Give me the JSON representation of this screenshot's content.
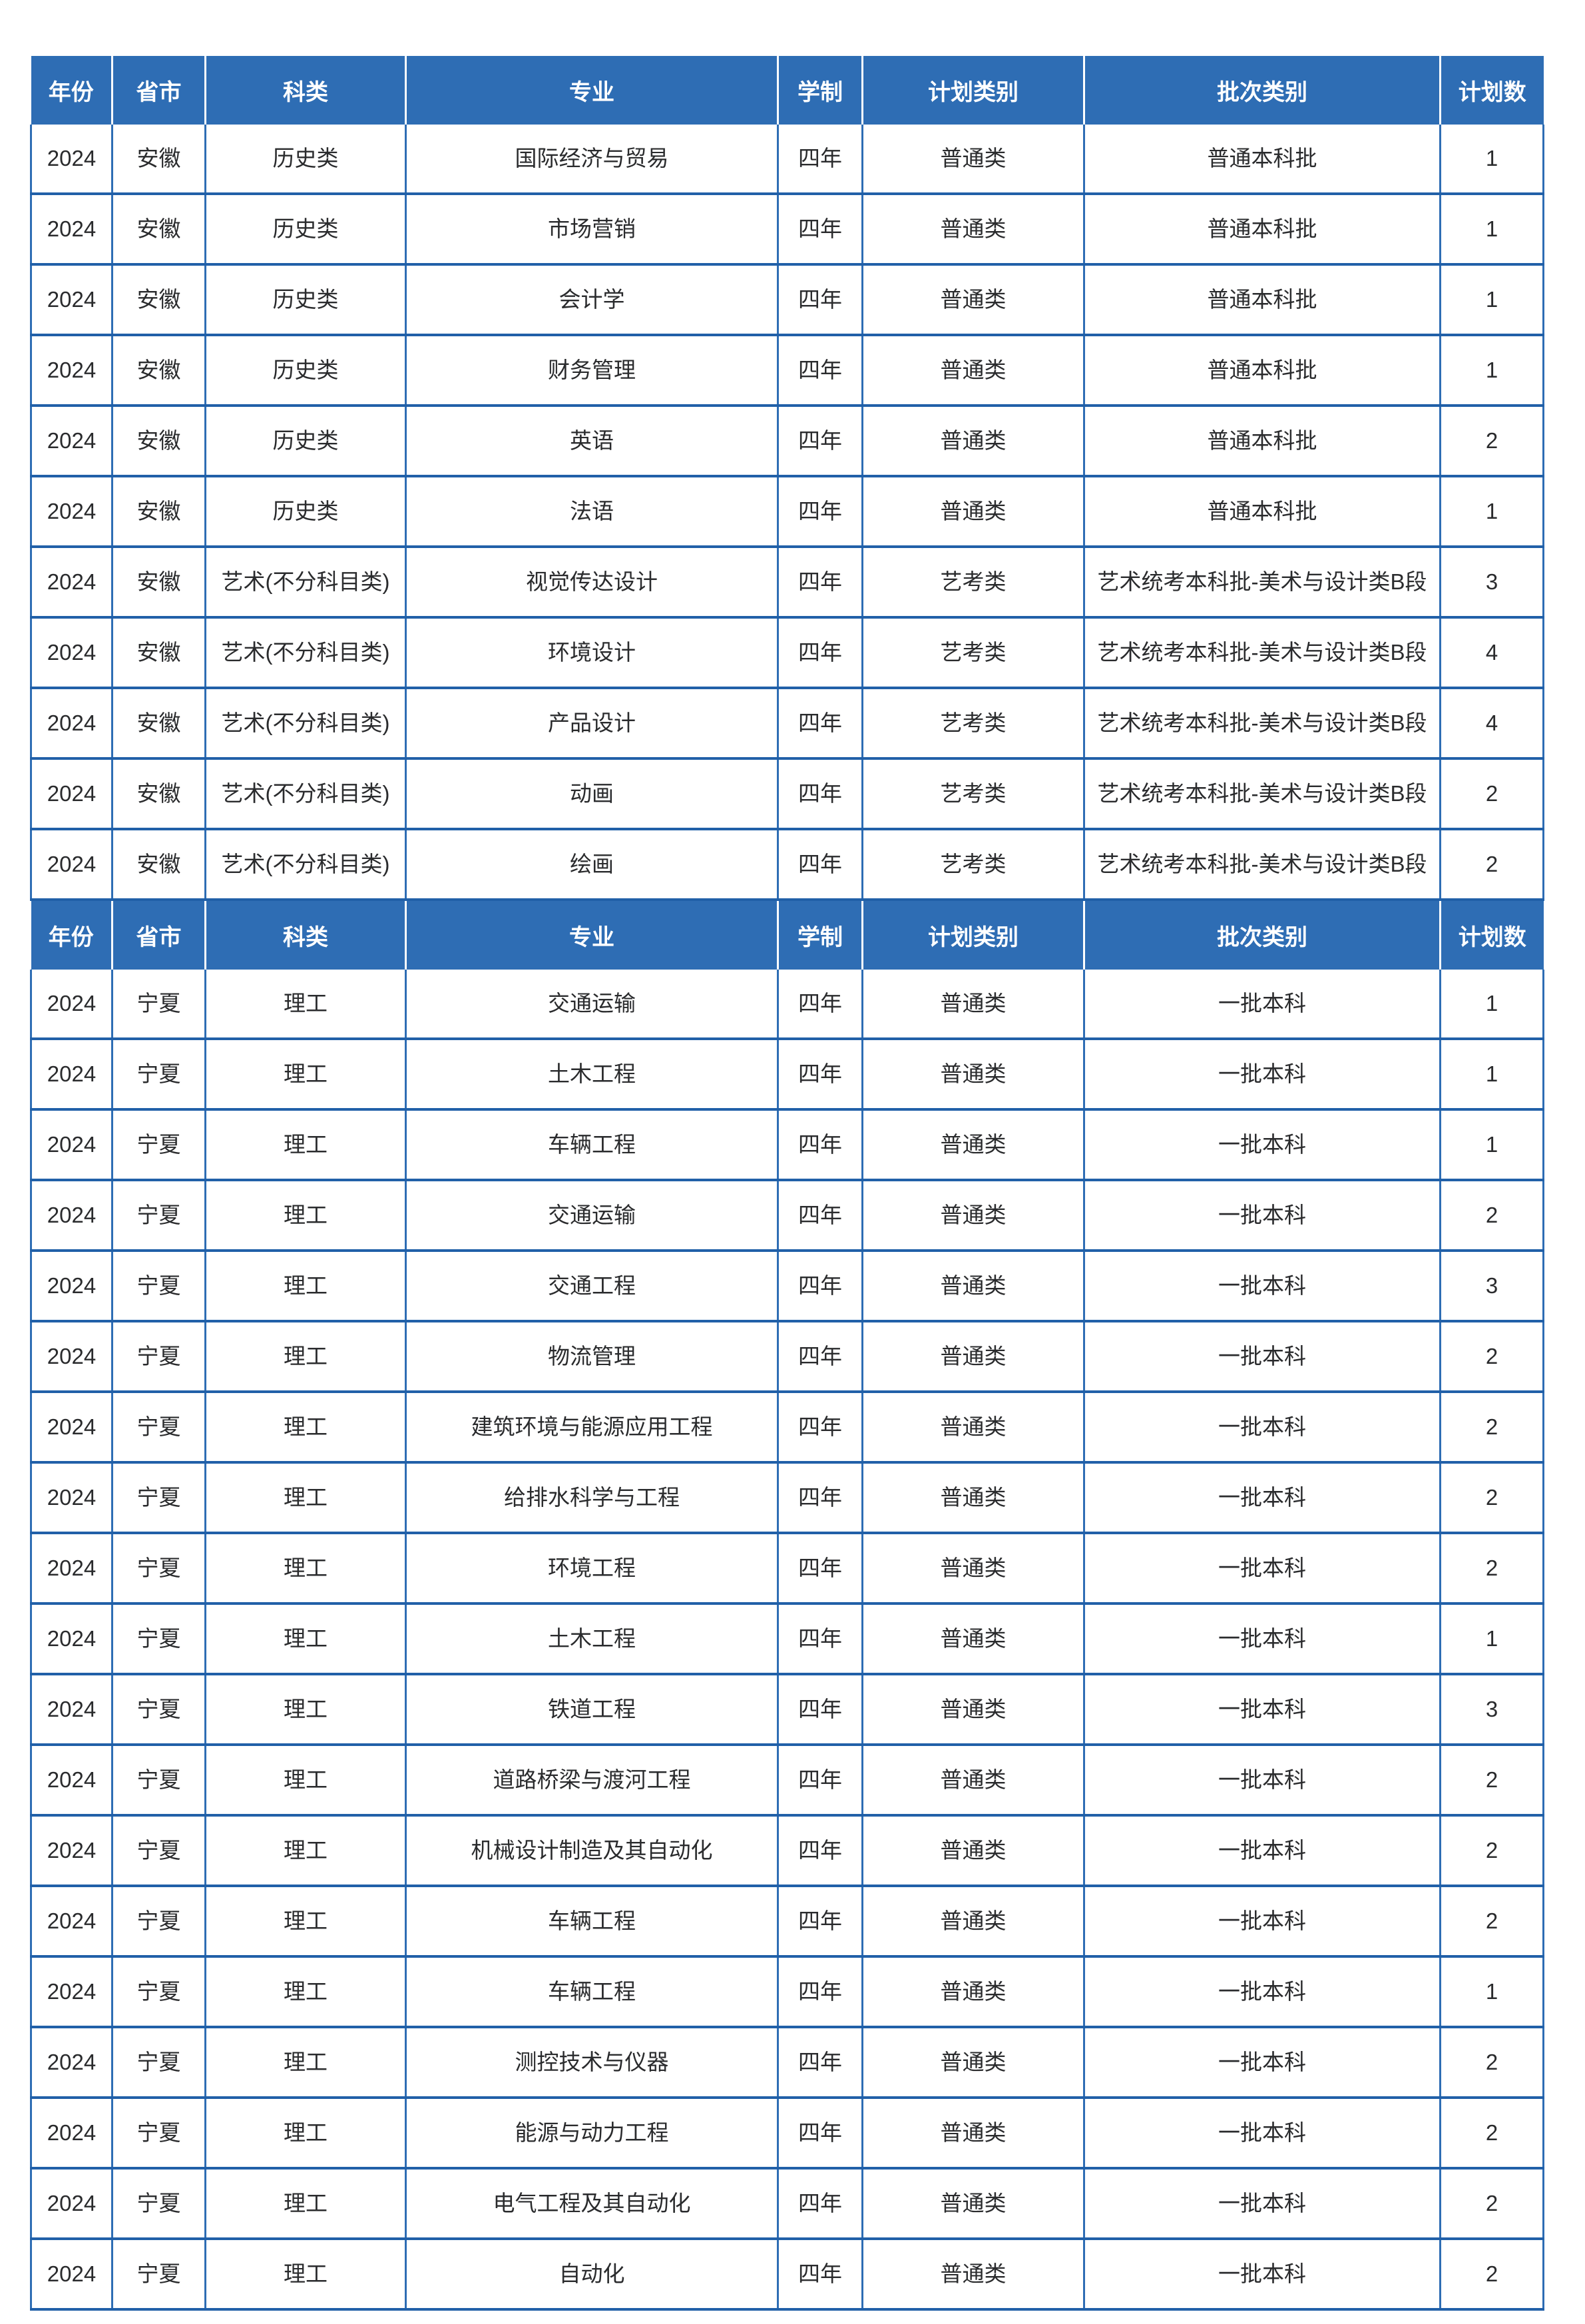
{
  "colors": {
    "header_bg": "#2e6db4",
    "header_text": "#ffffff",
    "row_separator": "#2160a8",
    "column_separator": "#2e6db4",
    "body_text": "#2a2b2d",
    "page_bg": "#ffffff"
  },
  "table": {
    "columns": [
      "年份",
      "省市",
      "科类",
      "专业",
      "学制",
      "计划类别",
      "批次类别",
      "计划数"
    ],
    "sections": [
      {
        "rows": [
          [
            "2024",
            "安徽",
            "历史类",
            "国际经济与贸易",
            "四年",
            "普通类",
            "普通本科批",
            "1"
          ],
          [
            "2024",
            "安徽",
            "历史类",
            "市场营销",
            "四年",
            "普通类",
            "普通本科批",
            "1"
          ],
          [
            "2024",
            "安徽",
            "历史类",
            "会计学",
            "四年",
            "普通类",
            "普通本科批",
            "1"
          ],
          [
            "2024",
            "安徽",
            "历史类",
            "财务管理",
            "四年",
            "普通类",
            "普通本科批",
            "1"
          ],
          [
            "2024",
            "安徽",
            "历史类",
            "英语",
            "四年",
            "普通类",
            "普通本科批",
            "2"
          ],
          [
            "2024",
            "安徽",
            "历史类",
            "法语",
            "四年",
            "普通类",
            "普通本科批",
            "1"
          ],
          [
            "2024",
            "安徽",
            "艺术(不分科目类)",
            "视觉传达设计",
            "四年",
            "艺考类",
            "艺术统考本科批-美术与设计类B段",
            "3"
          ],
          [
            "2024",
            "安徽",
            "艺术(不分科目类)",
            "环境设计",
            "四年",
            "艺考类",
            "艺术统考本科批-美术与设计类B段",
            "4"
          ],
          [
            "2024",
            "安徽",
            "艺术(不分科目类)",
            "产品设计",
            "四年",
            "艺考类",
            "艺术统考本科批-美术与设计类B段",
            "4"
          ],
          [
            "2024",
            "安徽",
            "艺术(不分科目类)",
            "动画",
            "四年",
            "艺考类",
            "艺术统考本科批-美术与设计类B段",
            "2"
          ],
          [
            "2024",
            "安徽",
            "艺术(不分科目类)",
            "绘画",
            "四年",
            "艺考类",
            "艺术统考本科批-美术与设计类B段",
            "2"
          ]
        ]
      },
      {
        "rows": [
          [
            "2024",
            "宁夏",
            "理工",
            "交通运输",
            "四年",
            "普通类",
            "一批本科",
            "1"
          ],
          [
            "2024",
            "宁夏",
            "理工",
            "土木工程",
            "四年",
            "普通类",
            "一批本科",
            "1"
          ],
          [
            "2024",
            "宁夏",
            "理工",
            "车辆工程",
            "四年",
            "普通类",
            "一批本科",
            "1"
          ],
          [
            "2024",
            "宁夏",
            "理工",
            "交通运输",
            "四年",
            "普通类",
            "一批本科",
            "2"
          ],
          [
            "2024",
            "宁夏",
            "理工",
            "交通工程",
            "四年",
            "普通类",
            "一批本科",
            "3"
          ],
          [
            "2024",
            "宁夏",
            "理工",
            "物流管理",
            "四年",
            "普通类",
            "一批本科",
            "2"
          ],
          [
            "2024",
            "宁夏",
            "理工",
            "建筑环境与能源应用工程",
            "四年",
            "普通类",
            "一批本科",
            "2"
          ],
          [
            "2024",
            "宁夏",
            "理工",
            "给排水科学与工程",
            "四年",
            "普通类",
            "一批本科",
            "2"
          ],
          [
            "2024",
            "宁夏",
            "理工",
            "环境工程",
            "四年",
            "普通类",
            "一批本科",
            "2"
          ],
          [
            "2024",
            "宁夏",
            "理工",
            "土木工程",
            "四年",
            "普通类",
            "一批本科",
            "1"
          ],
          [
            "2024",
            "宁夏",
            "理工",
            "铁道工程",
            "四年",
            "普通类",
            "一批本科",
            "3"
          ],
          [
            "2024",
            "宁夏",
            "理工",
            "道路桥梁与渡河工程",
            "四年",
            "普通类",
            "一批本科",
            "2"
          ],
          [
            "2024",
            "宁夏",
            "理工",
            "机械设计制造及其自动化",
            "四年",
            "普通类",
            "一批本科",
            "2"
          ],
          [
            "2024",
            "宁夏",
            "理工",
            "车辆工程",
            "四年",
            "普通类",
            "一批本科",
            "2"
          ],
          [
            "2024",
            "宁夏",
            "理工",
            "车辆工程",
            "四年",
            "普通类",
            "一批本科",
            "1"
          ],
          [
            "2024",
            "宁夏",
            "理工",
            "测控技术与仪器",
            "四年",
            "普通类",
            "一批本科",
            "2"
          ],
          [
            "2024",
            "宁夏",
            "理工",
            "能源与动力工程",
            "四年",
            "普通类",
            "一批本科",
            "2"
          ],
          [
            "2024",
            "宁夏",
            "理工",
            "电气工程及其自动化",
            "四年",
            "普通类",
            "一批本科",
            "2"
          ],
          [
            "2024",
            "宁夏",
            "理工",
            "自动化",
            "四年",
            "普通类",
            "一批本科",
            "2"
          ]
        ]
      }
    ]
  }
}
